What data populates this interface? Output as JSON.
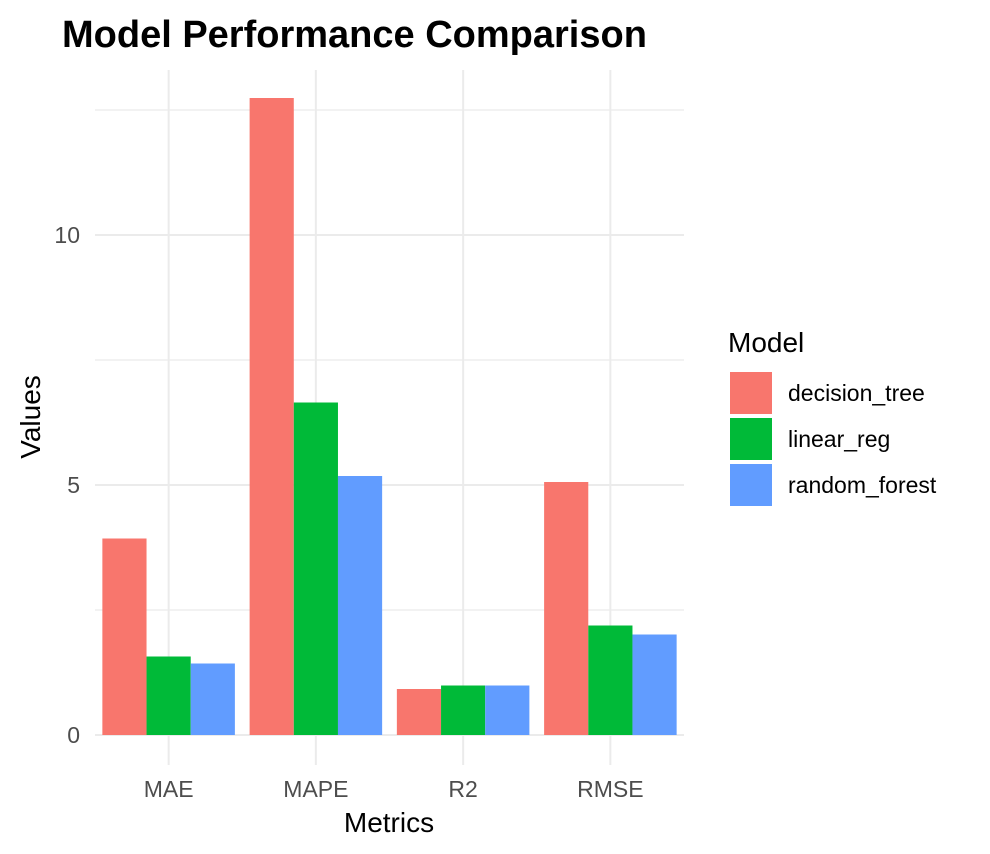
{
  "chart_data": {
    "type": "bar",
    "title": "Model Performance Comparison",
    "xlabel": "Metrics",
    "ylabel": "Values",
    "categories": [
      "MAE",
      "MAPE",
      "R2",
      "RMSE"
    ],
    "series": [
      {
        "name": "decision_tree",
        "color": "#F8766D",
        "values": [
          3.93,
          12.74,
          0.92,
          5.06
        ]
      },
      {
        "name": "linear_reg",
        "color": "#00BA38",
        "values": [
          1.57,
          6.65,
          0.99,
          2.19
        ]
      },
      {
        "name": "random_forest",
        "color": "#619CFF",
        "values": [
          1.43,
          5.18,
          0.99,
          2.01
        ]
      }
    ],
    "yticks": [
      0,
      5,
      10
    ],
    "ylim": [
      -0.6,
      13.3
    ],
    "grid": true,
    "legend": {
      "title": "Model",
      "position": "right"
    }
  }
}
